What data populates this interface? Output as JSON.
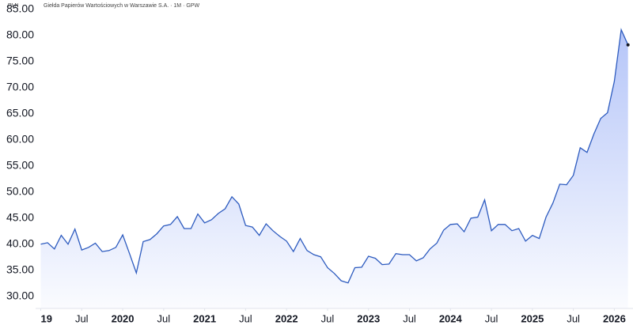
{
  "chart_data": {
    "type": "area",
    "currency": "PLN",
    "title": "Giełda Papierów Wartościowych w Warszawie S.A. · 1M · GPW",
    "color": "#2d5bbf",
    "x": [
      "2019-01",
      "2019-02",
      "2019-03",
      "2019-04",
      "2019-05",
      "2019-06",
      "2019-07",
      "2019-08",
      "2019-09",
      "2019-10",
      "2019-11",
      "2019-12",
      "2020-01",
      "2020-02",
      "2020-03",
      "2020-04",
      "2020-05",
      "2020-06",
      "2020-07",
      "2020-08",
      "2020-09",
      "2020-10",
      "2020-11",
      "2020-12",
      "2021-01",
      "2021-02",
      "2021-03",
      "2021-04",
      "2021-05",
      "2021-06",
      "2021-07",
      "2021-08",
      "2021-09",
      "2021-10",
      "2021-11",
      "2021-12",
      "2022-01",
      "2022-02",
      "2022-03",
      "2022-04",
      "2022-05",
      "2022-06",
      "2022-07",
      "2022-08",
      "2022-09",
      "2022-10",
      "2022-11",
      "2022-12",
      "2023-01",
      "2023-02",
      "2023-03",
      "2023-04",
      "2023-05",
      "2023-06",
      "2023-07",
      "2023-08",
      "2023-09",
      "2023-10",
      "2023-11",
      "2023-12",
      "2024-01",
      "2024-02",
      "2024-03",
      "2024-04",
      "2024-05",
      "2024-06",
      "2024-07",
      "2024-08",
      "2024-09",
      "2024-10",
      "2024-11",
      "2024-12",
      "2025-01",
      "2025-02",
      "2025-03",
      "2025-04",
      "2025-05",
      "2025-06",
      "2025-07",
      "2025-08",
      "2025-09",
      "2025-10",
      "2025-11",
      "2025-12",
      "2026-01",
      "2026-02",
      "2026-03"
    ],
    "values": [
      40.0,
      40.3,
      39.1,
      41.7,
      40.0,
      42.9,
      38.9,
      39.4,
      40.2,
      38.6,
      38.8,
      39.4,
      41.8,
      38.2,
      34.5,
      40.5,
      40.9,
      42.0,
      43.5,
      43.8,
      45.3,
      43.0,
      43.0,
      45.8,
      44.1,
      44.7,
      45.9,
      46.8,
      49.1,
      47.7,
      43.6,
      43.3,
      41.7,
      43.9,
      42.6,
      41.5,
      40.6,
      38.6,
      41.1,
      38.8,
      38.0,
      37.6,
      35.5,
      34.4,
      33.0,
      32.6,
      35.5,
      35.6,
      37.7,
      37.3,
      36.1,
      36.2,
      38.2,
      38.0,
      38.0,
      36.8,
      37.4,
      39.1,
      40.2,
      42.7,
      43.8,
      43.9,
      42.4,
      45.0,
      45.2,
      48.5,
      42.6,
      43.8,
      43.8,
      42.6,
      43.0,
      40.6,
      41.7,
      41.1,
      45.2,
      47.9,
      51.5,
      51.4,
      53.2,
      58.5,
      57.6,
      61.1,
      64.1,
      65.2,
      71.2,
      81.1,
      78.2
    ],
    "ylim": [
      27.7,
      86.8
    ],
    "yticks": [
      {
        "value": 30,
        "label": "30.00"
      },
      {
        "value": 35,
        "label": "35.00"
      },
      {
        "value": 40,
        "label": "40.00"
      },
      {
        "value": 45,
        "label": "45.00"
      },
      {
        "value": 50,
        "label": "50.00"
      },
      {
        "value": 55,
        "label": "55.00"
      },
      {
        "value": 60,
        "label": "60.00"
      },
      {
        "value": 65,
        "label": "65.00"
      },
      {
        "value": 70,
        "label": "70.00"
      },
      {
        "value": 75,
        "label": "75.00"
      },
      {
        "value": 80,
        "label": "80.00"
      },
      {
        "value": 85,
        "label": "85.00"
      }
    ],
    "xticks": [
      {
        "value": "2019-01",
        "label": "19"
      },
      {
        "value": "2019-07",
        "label": "Jul"
      },
      {
        "value": "2020-01",
        "label": "2020"
      },
      {
        "value": "2020-07",
        "label": "Jul"
      },
      {
        "value": "2021-01",
        "label": "2021"
      },
      {
        "value": "2021-07",
        "label": "Jul"
      },
      {
        "value": "2022-01",
        "label": "2022"
      },
      {
        "value": "2022-07",
        "label": "Jul"
      },
      {
        "value": "2023-01",
        "label": "2023"
      },
      {
        "value": "2023-07",
        "label": "Jul"
      },
      {
        "value": "2024-01",
        "label": "2024"
      },
      {
        "value": "2024-07",
        "label": "Jul"
      },
      {
        "value": "2025-01",
        "label": "2025"
      },
      {
        "value": "2025-07",
        "label": "Jul"
      },
      {
        "value": "2026-01",
        "label": "2026"
      }
    ]
  }
}
